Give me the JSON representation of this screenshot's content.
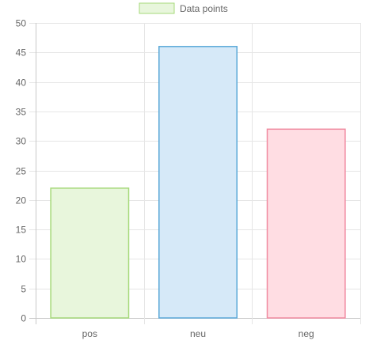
{
  "chart_data": {
    "type": "bar",
    "categories": [
      "pos",
      "neu",
      "neg"
    ],
    "series": [
      {
        "name": "Data points",
        "values": [
          22,
          46,
          32
        ]
      }
    ],
    "ylim": [
      0,
      50
    ],
    "yticks": [
      0,
      5,
      10,
      15,
      20,
      25,
      30,
      35,
      40,
      45,
      50
    ],
    "grid": true,
    "legend_position": "top",
    "bar_colors": [
      {
        "fill": "#e8f6dc",
        "stroke": "#a6d97a"
      },
      {
        "fill": "#d6e9f8",
        "stroke": "#5aa8d8"
      },
      {
        "fill": "#ffdde3",
        "stroke": "#f08aa0"
      }
    ],
    "legend_swatch": {
      "fill": "#e8f6dc",
      "stroke": "#a6d97a"
    },
    "gridline_color": "#e6e6e6",
    "axis_color": "#c8c8c8"
  }
}
